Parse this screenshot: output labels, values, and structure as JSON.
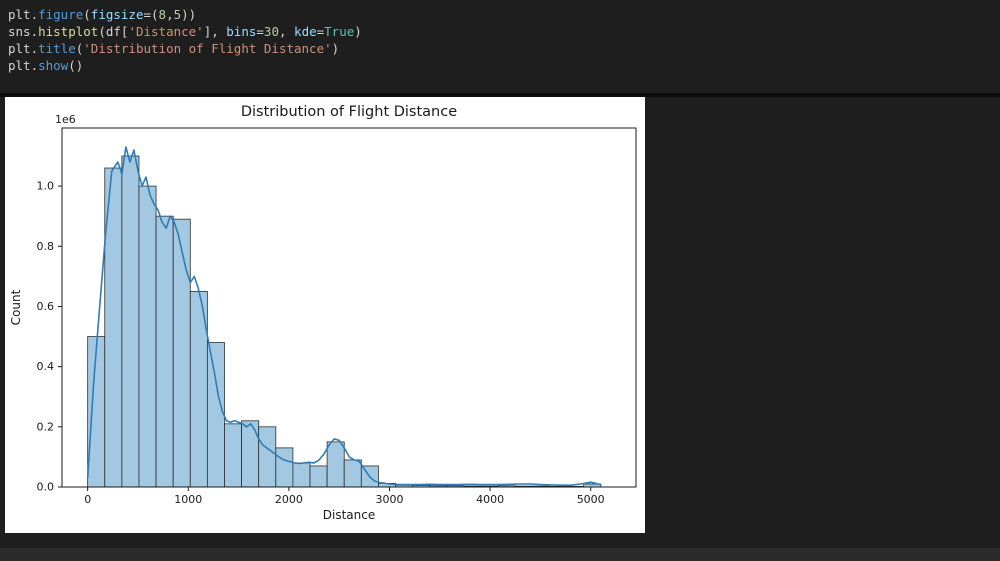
{
  "editor": {
    "code_lines": [
      [
        {
          "t": "plt.",
          "c": "plain"
        },
        {
          "t": "figure",
          "c": "fnb"
        },
        {
          "t": "(",
          "c": "plain"
        },
        {
          "t": "figsize",
          "c": "param"
        },
        {
          "t": "=(",
          "c": "plain"
        },
        {
          "t": "8",
          "c": "num"
        },
        {
          "t": ",",
          "c": "plain"
        },
        {
          "t": "5",
          "c": "num"
        },
        {
          "t": "))",
          "c": "plain"
        }
      ],
      [
        {
          "t": "sns.",
          "c": "plain"
        },
        {
          "t": "histplot",
          "c": "fny"
        },
        {
          "t": "(df[",
          "c": "plain"
        },
        {
          "t": "'Distance'",
          "c": "str"
        },
        {
          "t": "], ",
          "c": "plain"
        },
        {
          "t": "bins",
          "c": "param"
        },
        {
          "t": "=",
          "c": "plain"
        },
        {
          "t": "30",
          "c": "num"
        },
        {
          "t": ", ",
          "c": "plain"
        },
        {
          "t": "kde",
          "c": "param"
        },
        {
          "t": "=",
          "c": "plain"
        },
        {
          "t": "True",
          "c": "kw"
        },
        {
          "t": ")",
          "c": "plain"
        }
      ],
      [
        {
          "t": "plt.",
          "c": "plain"
        },
        {
          "t": "title",
          "c": "fnb"
        },
        {
          "t": "(",
          "c": "plain"
        },
        {
          "t": "'Distribution of Flight Distance'",
          "c": "str"
        },
        {
          "t": ")",
          "c": "plain"
        }
      ],
      [
        {
          "t": "plt.",
          "c": "plain"
        },
        {
          "t": "show",
          "c": "fnb"
        },
        {
          "t": "()",
          "c": "plain"
        }
      ]
    ]
  },
  "chart_data": {
    "type": "histogram",
    "title": "Distribution of Flight Distance",
    "xlabel": "Distance",
    "ylabel": "Count",
    "y_offset_label": "1e6",
    "legend": "none",
    "grid": false,
    "bin_start": 0,
    "bin_width": 170,
    "bar_values_millions": [
      0.5,
      1.06,
      1.1,
      1.0,
      0.9,
      0.89,
      0.65,
      0.48,
      0.21,
      0.22,
      0.2,
      0.13,
      0.08,
      0.07,
      0.15,
      0.09,
      0.07,
      0.012,
      0.006,
      0.005,
      0.004,
      0.004,
      0.003,
      0.003,
      0.004,
      0.003,
      0.003,
      0.002,
      0.002,
      0.01
    ],
    "kde_points": [
      [
        0,
        0.03
      ],
      [
        60,
        0.35
      ],
      [
        120,
        0.6
      ],
      [
        180,
        0.85
      ],
      [
        240,
        1.05
      ],
      [
        300,
        1.08
      ],
      [
        340,
        1.04
      ],
      [
        380,
        1.13
      ],
      [
        420,
        1.08
      ],
      [
        460,
        1.12
      ],
      [
        500,
        1.05
      ],
      [
        540,
        1.0
      ],
      [
        580,
        1.03
      ],
      [
        620,
        0.97
      ],
      [
        660,
        0.94
      ],
      [
        700,
        0.92
      ],
      [
        740,
        0.88
      ],
      [
        780,
        0.86
      ],
      [
        820,
        0.9
      ],
      [
        860,
        0.88
      ],
      [
        900,
        0.84
      ],
      [
        940,
        0.78
      ],
      [
        980,
        0.72
      ],
      [
        1020,
        0.68
      ],
      [
        1060,
        0.7
      ],
      [
        1100,
        0.66
      ],
      [
        1140,
        0.6
      ],
      [
        1180,
        0.52
      ],
      [
        1220,
        0.45
      ],
      [
        1260,
        0.38
      ],
      [
        1300,
        0.3
      ],
      [
        1340,
        0.25
      ],
      [
        1380,
        0.22
      ],
      [
        1420,
        0.215
      ],
      [
        1460,
        0.22
      ],
      [
        1500,
        0.215
      ],
      [
        1540,
        0.21
      ],
      [
        1580,
        0.2
      ],
      [
        1620,
        0.21
      ],
      [
        1660,
        0.19
      ],
      [
        1700,
        0.16
      ],
      [
        1740,
        0.14
      ],
      [
        1780,
        0.13
      ],
      [
        1820,
        0.12
      ],
      [
        1860,
        0.11
      ],
      [
        1900,
        0.1
      ],
      [
        1950,
        0.09
      ],
      [
        2000,
        0.085
      ],
      [
        2050,
        0.08
      ],
      [
        2100,
        0.078
      ],
      [
        2150,
        0.08
      ],
      [
        2200,
        0.082
      ],
      [
        2250,
        0.08
      ],
      [
        2300,
        0.09
      ],
      [
        2350,
        0.11
      ],
      [
        2400,
        0.14
      ],
      [
        2450,
        0.16
      ],
      [
        2500,
        0.155
      ],
      [
        2550,
        0.13
      ],
      [
        2600,
        0.1
      ],
      [
        2650,
        0.09
      ],
      [
        2700,
        0.085
      ],
      [
        2750,
        0.06
      ],
      [
        2800,
        0.035
      ],
      [
        2850,
        0.02
      ],
      [
        2900,
        0.015
      ],
      [
        3000,
        0.01
      ],
      [
        3100,
        0.008
      ],
      [
        3200,
        0.008
      ],
      [
        3300,
        0.008
      ],
      [
        3400,
        0.009
      ],
      [
        3500,
        0.008
      ],
      [
        3600,
        0.008
      ],
      [
        3700,
        0.008
      ],
      [
        3800,
        0.009
      ],
      [
        3900,
        0.008
      ],
      [
        4000,
        0.008
      ],
      [
        4100,
        0.008
      ],
      [
        4200,
        0.009
      ],
      [
        4300,
        0.01
      ],
      [
        4400,
        0.01
      ],
      [
        4500,
        0.008
      ],
      [
        4600,
        0.007
      ],
      [
        4700,
        0.006
      ],
      [
        4800,
        0.006
      ],
      [
        4900,
        0.01
      ],
      [
        5000,
        0.016
      ],
      [
        5050,
        0.012
      ],
      [
        5100,
        0.008
      ]
    ],
    "x_ticks": [
      0,
      1000,
      2000,
      3000,
      4000,
      5000
    ],
    "y_ticks": [
      0.0,
      0.2,
      0.4,
      0.6,
      0.8,
      1.0
    ],
    "x_view": [
      -255,
      5450
    ],
    "y_view": [
      0,
      1.193
    ],
    "bar_fill": "#a3c8e1",
    "bar_edge": "#2e2e2e",
    "kde_color": "#2f7cb6",
    "axes_color": "#1a1a1a",
    "figure_background": "#ffffff"
  }
}
